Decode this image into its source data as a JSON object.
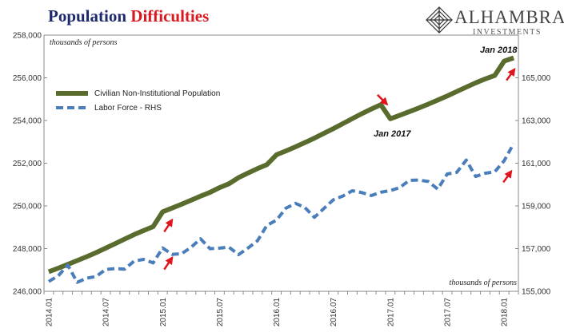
{
  "title": {
    "part1": "Population",
    "part2": "Difficulties"
  },
  "logo": {
    "name": "ALHAMBRA",
    "sub": "INVESTMENTS"
  },
  "colors": {
    "civilian": "#5a6b2e",
    "labor": "#4a7ebb",
    "arrow": "#e0141c",
    "title_blue": "#1f2a6e",
    "title_red": "#d8191f"
  },
  "chart_data": {
    "type": "line",
    "x": [
      "2014.01",
      "2014.02",
      "2014.03",
      "2014.04",
      "2014.05",
      "2014.06",
      "2014.07",
      "2014.08",
      "2014.09",
      "2014.10",
      "2014.11",
      "2014.12",
      "2015.01",
      "2015.02",
      "2015.03",
      "2015.04",
      "2015.05",
      "2015.06",
      "2015.07",
      "2015.08",
      "2015.09",
      "2015.10",
      "2015.11",
      "2015.12",
      "2016.01",
      "2016.02",
      "2016.03",
      "2016.04",
      "2016.05",
      "2016.06",
      "2016.07",
      "2016.08",
      "2016.09",
      "2016.10",
      "2016.11",
      "2016.12",
      "2017.01",
      "2017.02",
      "2017.03",
      "2017.04",
      "2017.05",
      "2017.06",
      "2017.07",
      "2017.08",
      "2017.09",
      "2017.10",
      "2017.11",
      "2017.12",
      "2018.01",
      "2018.02"
    ],
    "x_tick_labels": [
      "2014.01",
      "2014.07",
      "2015.01",
      "2015.07",
      "2016.01",
      "2016.07",
      "2017.01",
      "2017.07",
      "2018.01"
    ],
    "series": [
      {
        "name": "Civilian Non-Institutional Population",
        "axis": "left",
        "style": "solid",
        "values": [
          246915,
          247085,
          247258,
          247439,
          247622,
          247814,
          248023,
          248233,
          248446,
          248657,
          248844,
          249027,
          249723,
          249899,
          250080,
          250266,
          250455,
          250636,
          250857,
          251040,
          251325,
          251541,
          251747,
          251936,
          252397,
          252577,
          252768,
          252969,
          253174,
          253397,
          253620,
          253854,
          254091,
          254321,
          254540,
          254742,
          254082,
          254246,
          254414,
          254588,
          254767,
          254957,
          255151,
          255357,
          255562,
          255766,
          255949,
          256109,
          256780,
          256934
        ]
      },
      {
        "name": "Labor Force - RHS",
        "axis": "right",
        "style": "dashed",
        "values": [
          155460,
          155724,
          156227,
          155421,
          155613,
          155694,
          156023,
          156062,
          156040,
          156417,
          156494,
          156332,
          157030,
          156732,
          156760,
          157060,
          157460,
          156997,
          157023,
          157067,
          156715,
          157028,
          157367,
          158090,
          158335,
          158892,
          159119,
          158924,
          158466,
          158880,
          159287,
          159463,
          159712,
          159625,
          159486,
          159640,
          159716,
          159861,
          160201,
          160213,
          160145,
          159784,
          160494,
          160571,
          161146,
          160381,
          160529,
          160597,
          161115,
          161921
        ]
      }
    ],
    "left_axis": {
      "ylim": [
        246000,
        258000
      ],
      "ticks": [
        "246,000",
        "248,000",
        "250,000",
        "252,000",
        "254,000",
        "256,000",
        "258,000"
      ],
      "unit_label": "thousands of persons"
    },
    "right_axis": {
      "ylim": [
        155000,
        167000
      ],
      "ticks": [
        "155,000",
        "157,000",
        "159,000",
        "161,000",
        "163,000",
        "165,000"
      ],
      "unit_label": "thousands of persons"
    },
    "annotations": [
      {
        "text": "Jan 2017"
      },
      {
        "text": "Jan 2018"
      }
    ],
    "legend_placement": "top-left",
    "grid": false
  }
}
